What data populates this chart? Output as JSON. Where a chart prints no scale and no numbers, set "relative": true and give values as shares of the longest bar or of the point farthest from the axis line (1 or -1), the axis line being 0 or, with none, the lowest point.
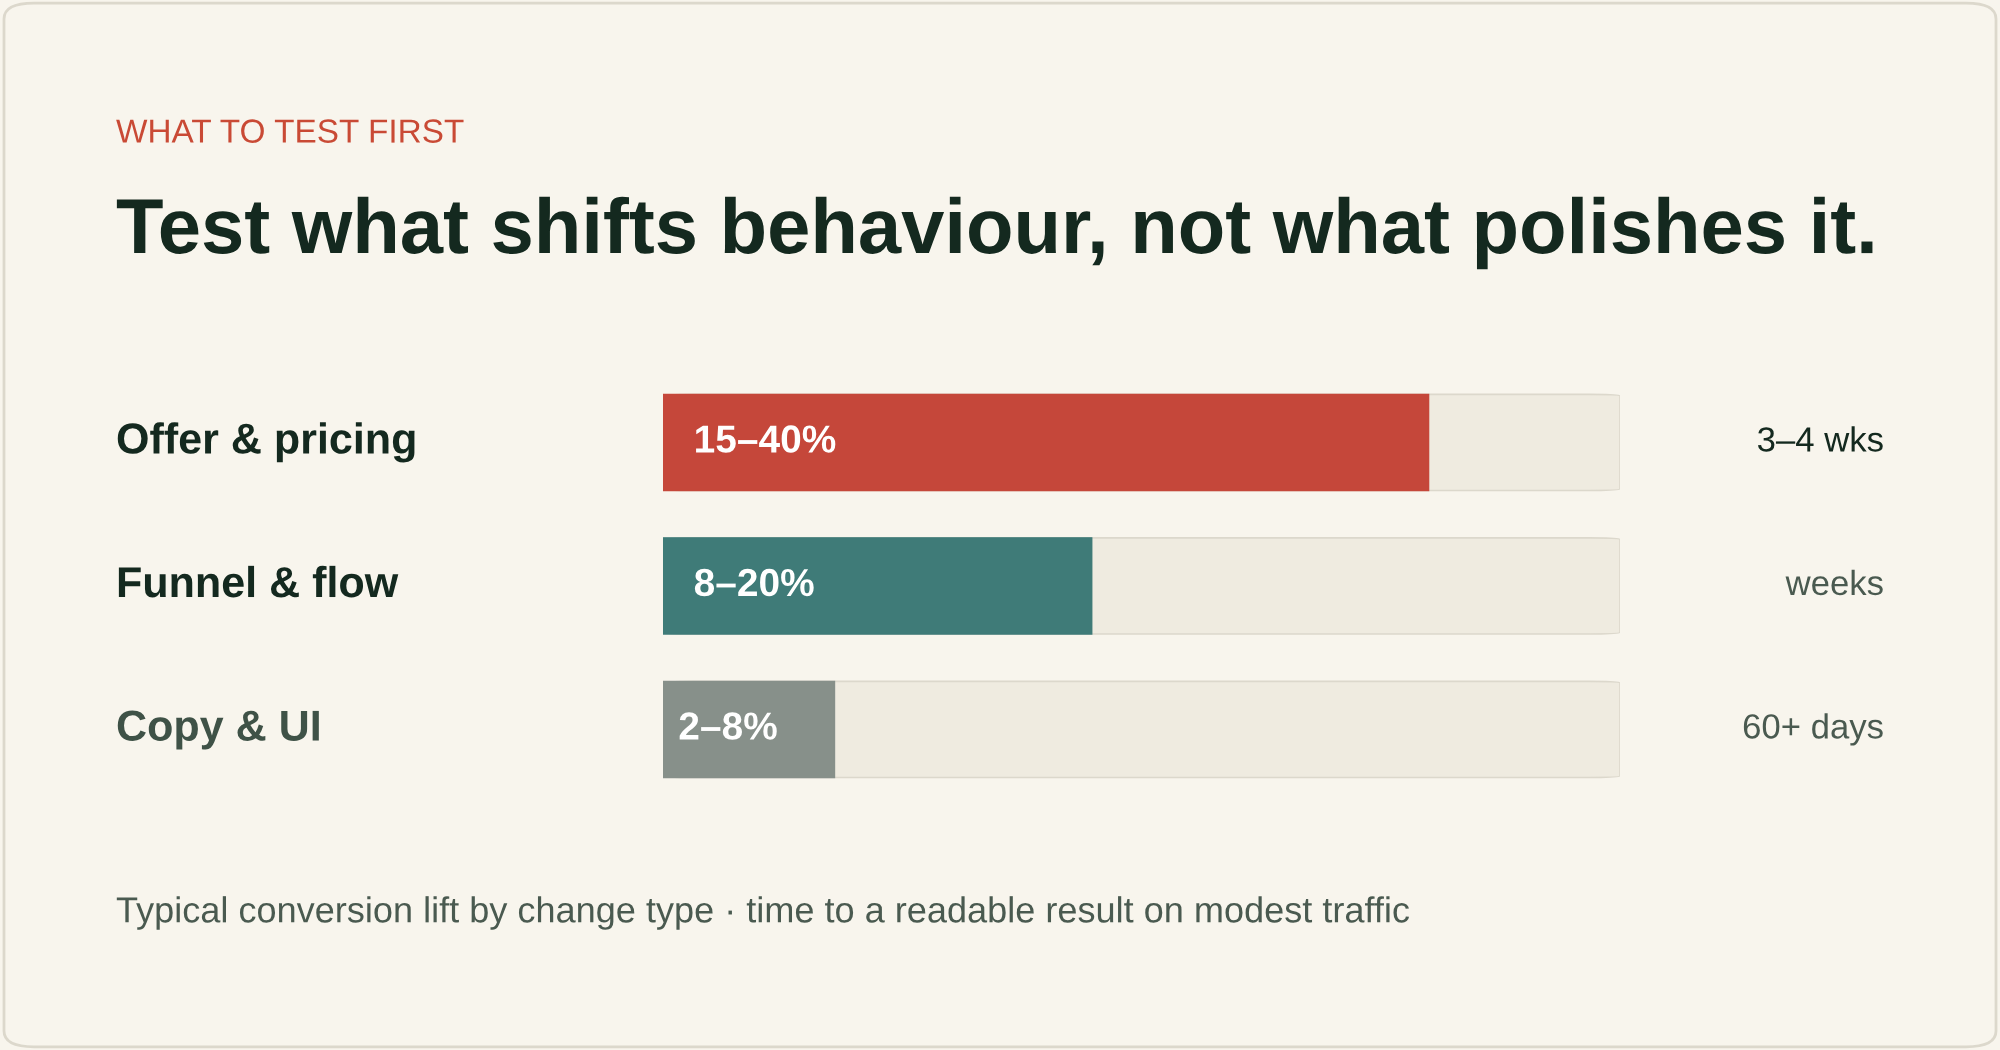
{
  "chart_data": {
    "type": "bar",
    "orientation": "horizontal",
    "relative": true,
    "subtitle": "WHAT TO TEST FIRST",
    "title": "Test what shifts behaviour, not what polishes it.",
    "categories": [
      "Offer & pricing",
      "Funnel & flow",
      "Copy & UI"
    ],
    "values": [
      1,
      0.56,
      0.224
    ],
    "colors": [
      "#c5473a",
      "#3f7b78",
      "#87908a"
    ],
    "annotations": [
      "15–40%",
      "8–20%",
      "2–8%",
      "3–4 wks",
      "weeks",
      "60+ days",
      "Typical conversion lift by change type · time to a readable result on modest traffic"
    ],
    "legend": false
  }
}
